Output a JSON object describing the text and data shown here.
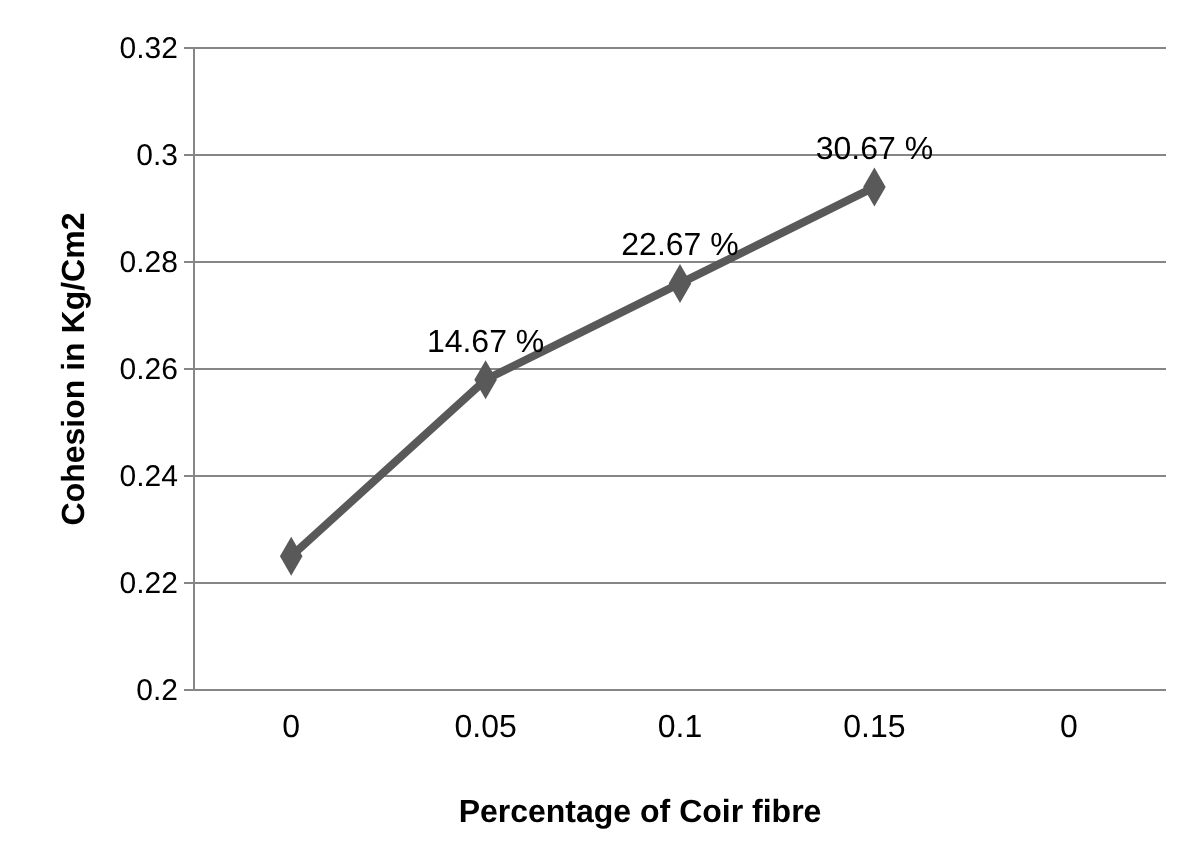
{
  "chart_data": {
    "type": "line",
    "xlabel": "Percentage of  Coir fibre",
    "ylabel": "Cohesion in Kg/Cm2",
    "categories": [
      "0",
      "0.05",
      "0.1",
      "0.15",
      "0"
    ],
    "series": [
      {
        "color": "#595959",
        "values": [
          0.225,
          0.258,
          0.276,
          0.294,
          null
        ]
      }
    ],
    "ylim": [
      0.2,
      0.32
    ],
    "yticks": [
      0.2,
      0.22,
      0.24,
      0.26,
      0.28,
      0.3,
      0.32
    ],
    "grid": "y",
    "marker": "diamond",
    "line_style": "solid",
    "annotations": [
      {
        "text": "14.67 %",
        "x": "0.05",
        "y": 0.258
      },
      {
        "text": "22.67 %",
        "x": "0.1",
        "y": 0.276
      },
      {
        "text": "30.67 %",
        "x": "0.15",
        "y": 0.294
      }
    ]
  }
}
